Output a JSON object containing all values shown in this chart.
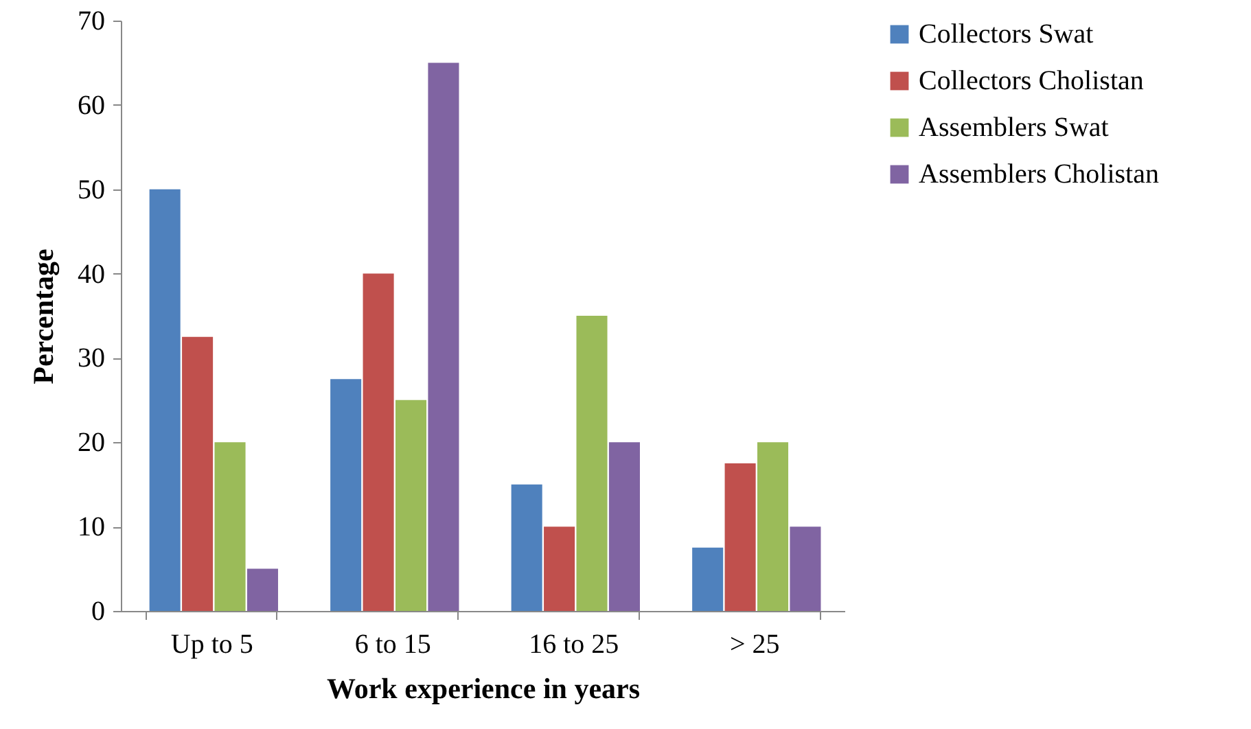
{
  "chart_data": {
    "type": "bar",
    "xlabel": "Work experience in years",
    "ylabel": "Percentage",
    "categories": [
      "Up to 5",
      "6 to 15",
      "16 to 25",
      "> 25"
    ],
    "series": [
      {
        "name": "Collectors Swat",
        "color": "#4f81bd",
        "values": [
          50,
          27.5,
          15,
          7.5
        ]
      },
      {
        "name": "Collectors Cholistan",
        "color": "#c0504d",
        "values": [
          32.5,
          40,
          10,
          17.5
        ]
      },
      {
        "name": "Assemblers Swat",
        "color": "#9bbb59",
        "values": [
          20,
          25,
          35,
          20
        ]
      },
      {
        "name": "Assemblers Cholistan",
        "color": "#8064a2",
        "values": [
          5,
          65,
          20,
          10
        ]
      }
    ],
    "ylim": [
      0,
      70
    ],
    "yticks": [
      0,
      10,
      20,
      30,
      40,
      50,
      60,
      70
    ],
    "grid": false,
    "legend": "right"
  }
}
